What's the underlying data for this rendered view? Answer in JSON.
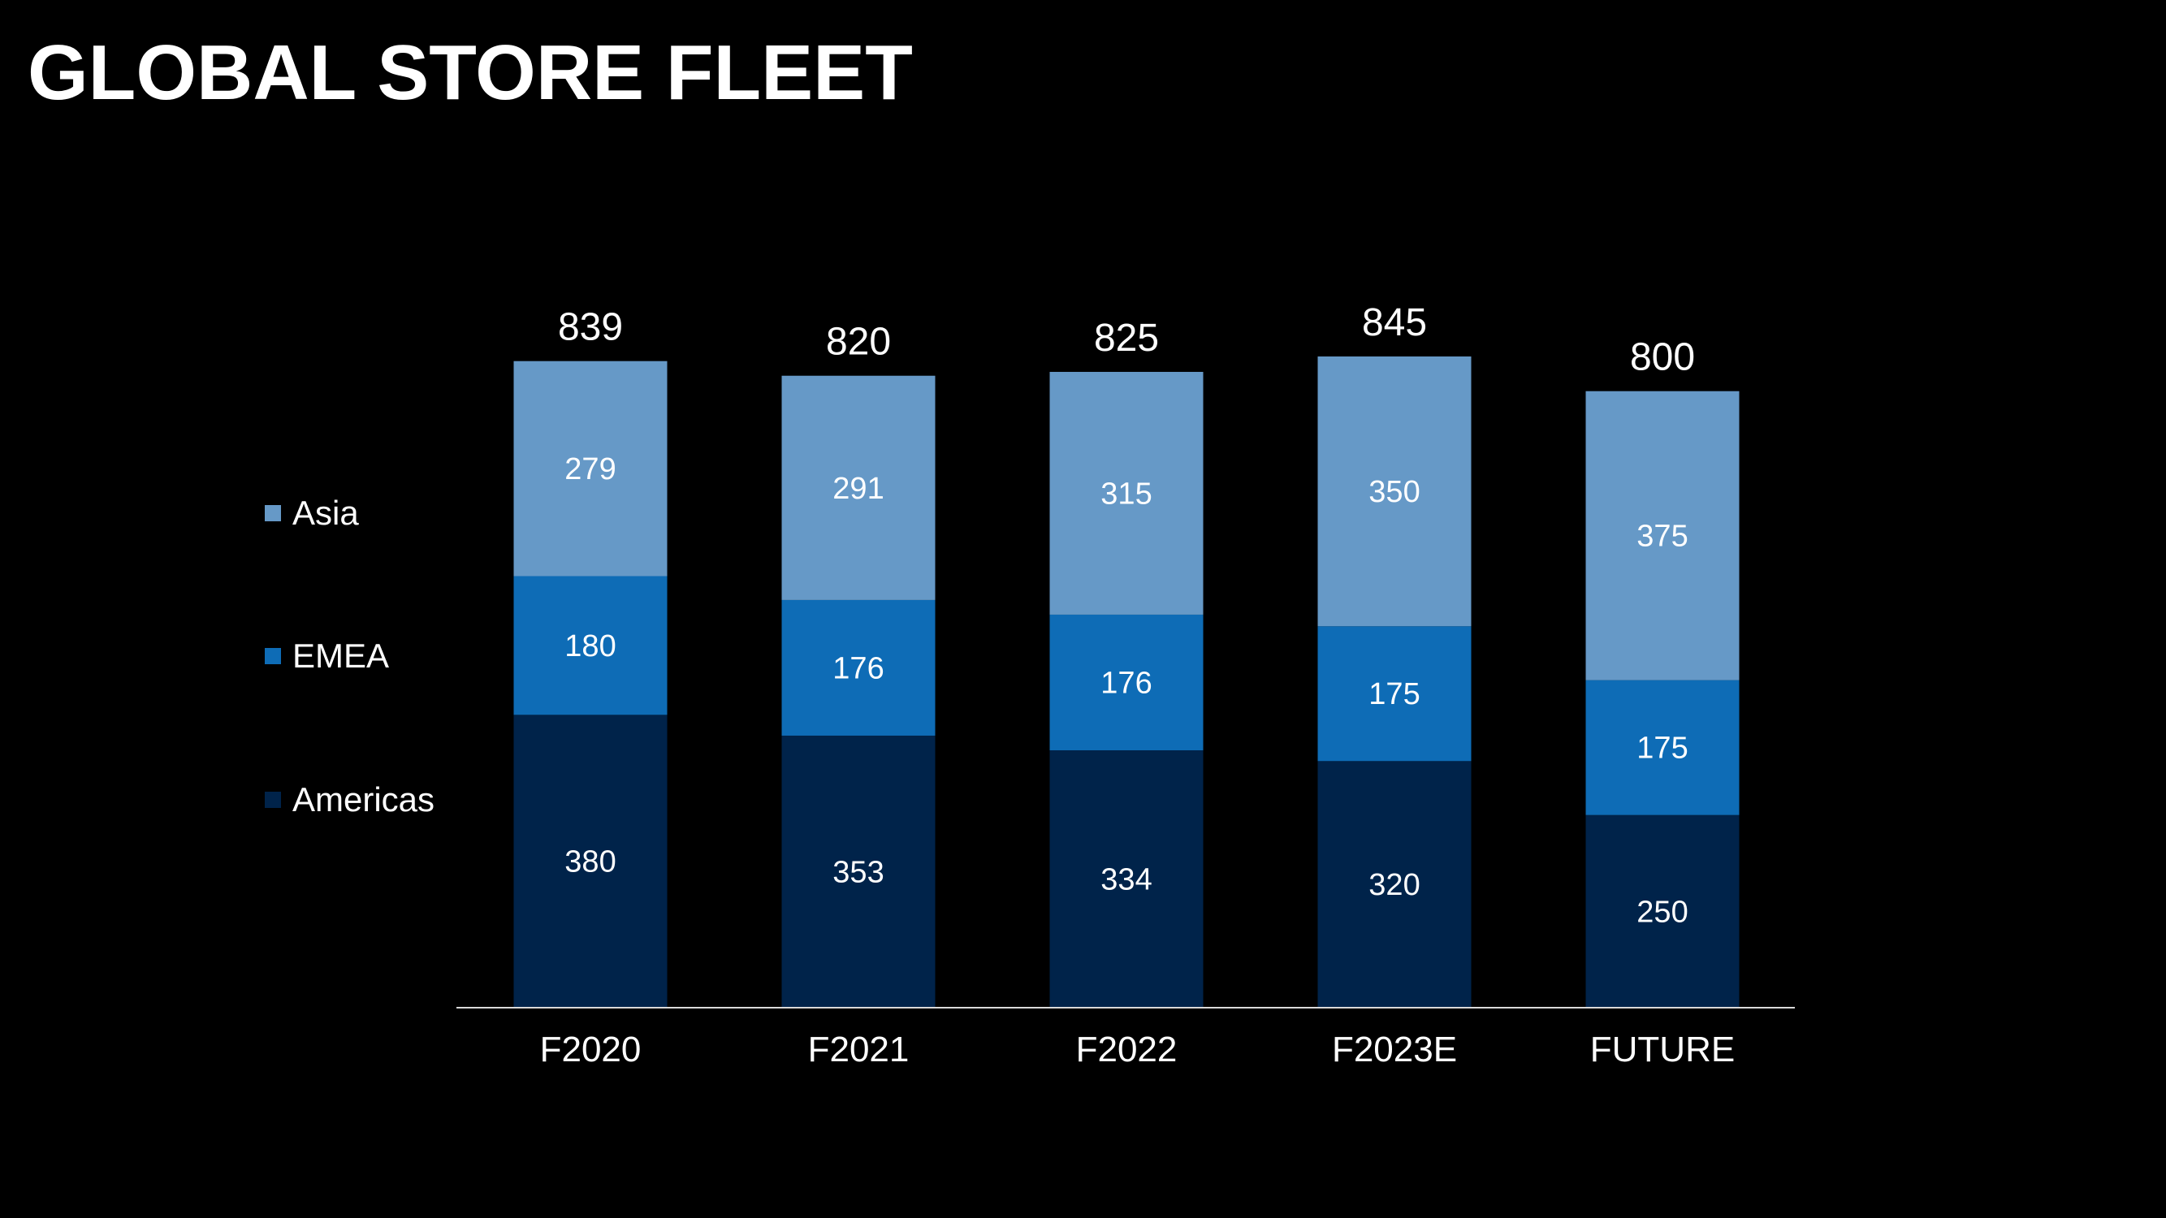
{
  "title": "GLOBAL STORE FLEET",
  "colors": {
    "background": "#000000",
    "text": "#ffffff",
    "axis": "#d9d9d9"
  },
  "chart_data": {
    "type": "bar",
    "stacked": true,
    "categories": [
      "F2020",
      "F2021",
      "F2022",
      "F2023E",
      "FUTURE"
    ],
    "series": [
      {
        "name": "Americas",
        "color": "#00234a",
        "values": [
          380,
          353,
          334,
          320,
          250
        ]
      },
      {
        "name": "EMEA",
        "color": "#0e6cb6",
        "values": [
          180,
          176,
          176,
          175,
          175
        ]
      },
      {
        "name": "Asia",
        "color": "#6699c7",
        "values": [
          279,
          291,
          315,
          350,
          375
        ]
      }
    ],
    "totals": [
      839,
      820,
      825,
      845,
      800
    ],
    "ylim": [
      0,
      845
    ],
    "grid": false,
    "legend_position": "left"
  }
}
